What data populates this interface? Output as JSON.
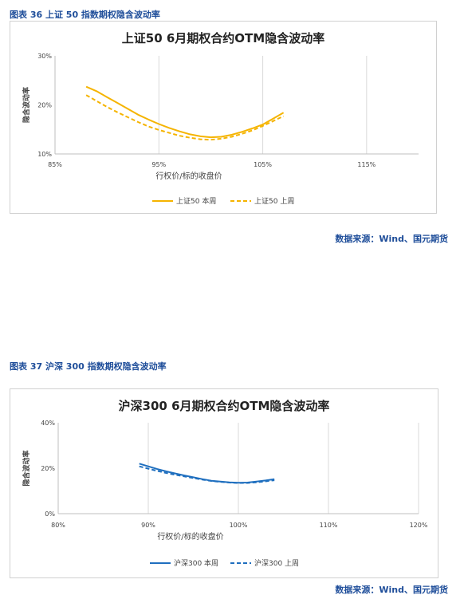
{
  "source_text": "数据来源：Wind、国元期货",
  "figures": [
    {
      "caption": "图表 36 上证 50 指数期权隐含波动率",
      "chart_data": {
        "type": "line",
        "title": "上证50 6月期权合约OTM隐含波动率",
        "xlabel": "行权价/标的收盘价",
        "ylabel": "隐含波动率",
        "xlim": [
          0.85,
          1.2
        ],
        "ylim": [
          0.1,
          0.3
        ],
        "xticks": [
          0.85,
          0.95,
          1.05,
          1.15
        ],
        "xtick_labels": [
          "85%",
          "95%",
          "105%",
          "115%"
        ],
        "yticks": [
          0.1,
          0.2,
          0.3
        ],
        "ytick_labels": [
          "10%",
          "20%",
          "30%"
        ],
        "grid": "vertical",
        "legend": "bottom",
        "series": [
          {
            "name": "上证50 本周",
            "style": "solid",
            "color": "#f5b400",
            "x": [
              0.88,
              0.89,
              0.9,
              0.91,
              0.92,
              0.93,
              0.94,
              0.95,
              0.96,
              0.97,
              0.98,
              0.99,
              1.0,
              1.01,
              1.02,
              1.03,
              1.04,
              1.05,
              1.06,
              1.07
            ],
            "y": [
              0.237,
              0.228,
              0.216,
              0.204,
              0.192,
              0.18,
              0.17,
              0.161,
              0.153,
              0.146,
              0.14,
              0.136,
              0.134,
              0.135,
              0.139,
              0.145,
              0.152,
              0.16,
              0.172,
              0.184
            ]
          },
          {
            "name": "上证50 上周",
            "style": "dashed",
            "color": "#f5b400",
            "x": [
              0.88,
              0.89,
              0.9,
              0.91,
              0.92,
              0.93,
              0.94,
              0.95,
              0.96,
              0.97,
              0.98,
              0.99,
              1.0,
              1.01,
              1.02,
              1.03,
              1.04,
              1.05,
              1.06,
              1.07
            ],
            "y": [
              0.22,
              0.208,
              0.196,
              0.185,
              0.175,
              0.165,
              0.156,
              0.149,
              0.143,
              0.137,
              0.133,
              0.13,
              0.129,
              0.131,
              0.135,
              0.141,
              0.148,
              0.157,
              0.167,
              0.177
            ]
          }
        ]
      }
    },
    {
      "caption": "图表 37 沪深 300 指数期权隐含波动率",
      "chart_data": {
        "type": "line",
        "title": "沪深300 6月期权合约OTM隐含波动率",
        "xlabel": "行权价/标的收盘价",
        "ylabel": "隐含波动率",
        "xlim": [
          0.8,
          1.2
        ],
        "ylim": [
          0.0,
          0.4
        ],
        "xticks": [
          0.8,
          0.9,
          1.0,
          1.1,
          1.2
        ],
        "xtick_labels": [
          "80%",
          "90%",
          "100%",
          "110%",
          "120%"
        ],
        "yticks": [
          0.0,
          0.2,
          0.4
        ],
        "ytick_labels": [
          "0%",
          "20%",
          "40%"
        ],
        "grid": "vertical",
        "legend": "bottom",
        "series": [
          {
            "name": "沪深300 本周",
            "style": "solid",
            "color": "#1f6fbf",
            "x": [
              0.89,
              0.9,
              0.91,
              0.92,
              0.93,
              0.94,
              0.95,
              0.96,
              0.97,
              0.98,
              0.99,
              1.0,
              1.01,
              1.02,
              1.03,
              1.04
            ],
            "y": [
              0.22,
              0.208,
              0.196,
              0.186,
              0.177,
              0.168,
              0.16,
              0.152,
              0.145,
              0.141,
              0.138,
              0.136,
              0.137,
              0.141,
              0.146,
              0.152
            ]
          },
          {
            "name": "沪深300 上周",
            "style": "dashed",
            "color": "#1f6fbf",
            "x": [
              0.89,
              0.9,
              0.91,
              0.92,
              0.93,
              0.94,
              0.95,
              0.96,
              0.97,
              0.98,
              0.99,
              1.0,
              1.01,
              1.02,
              1.03,
              1.04
            ],
            "y": [
              0.208,
              0.198,
              0.188,
              0.179,
              0.171,
              0.164,
              0.157,
              0.15,
              0.144,
              0.14,
              0.137,
              0.135,
              0.135,
              0.138,
              0.142,
              0.147
            ]
          }
        ]
      }
    }
  ]
}
